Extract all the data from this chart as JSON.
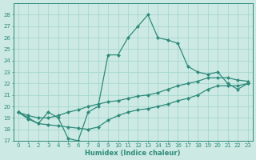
{
  "xlabel": "Humidex (Indice chaleur)",
  "x": [
    0,
    1,
    2,
    3,
    4,
    5,
    6,
    7,
    8,
    9,
    10,
    11,
    12,
    13,
    14,
    15,
    16,
    17,
    18,
    19,
    20,
    21,
    22,
    23
  ],
  "y_main": [
    19.5,
    19.0,
    18.5,
    19.5,
    19.0,
    17.2,
    17.0,
    19.5,
    20.0,
    24.5,
    24.5,
    26.0,
    27.0,
    28.0,
    26.0,
    25.8,
    25.5,
    23.5,
    23.0,
    22.8,
    23.0,
    22.0,
    21.5,
    22.0
  ],
  "y_upper": [
    19.5,
    19.2,
    19.0,
    19.0,
    19.2,
    19.5,
    19.7,
    20.0,
    20.2,
    20.4,
    20.5,
    20.7,
    20.9,
    21.0,
    21.2,
    21.5,
    21.8,
    22.0,
    22.2,
    22.5,
    22.5,
    22.5,
    22.3,
    22.2
  ],
  "y_lower": [
    19.5,
    18.9,
    18.5,
    18.4,
    18.3,
    18.2,
    18.1,
    18.0,
    18.2,
    18.8,
    19.2,
    19.5,
    19.7,
    19.8,
    20.0,
    20.2,
    20.5,
    20.7,
    21.0,
    21.5,
    21.8,
    21.8,
    21.8,
    22.0
  ],
  "line_color": "#2e8b7a",
  "bg_color": "#cde9e4",
  "grid_color": "#9dd4cc",
  "ylim": [
    17,
    29
  ],
  "xlim": [
    -0.5,
    23.5
  ],
  "yticks": [
    17,
    18,
    19,
    20,
    21,
    22,
    23,
    24,
    25,
    26,
    27,
    28
  ],
  "xticks": [
    0,
    1,
    2,
    3,
    4,
    5,
    6,
    7,
    8,
    9,
    10,
    11,
    12,
    13,
    14,
    15,
    16,
    17,
    18,
    19,
    20,
    21,
    22,
    23
  ],
  "tick_fontsize": 5,
  "xlabel_fontsize": 6,
  "marker_size": 2.5,
  "linewidth": 0.9
}
